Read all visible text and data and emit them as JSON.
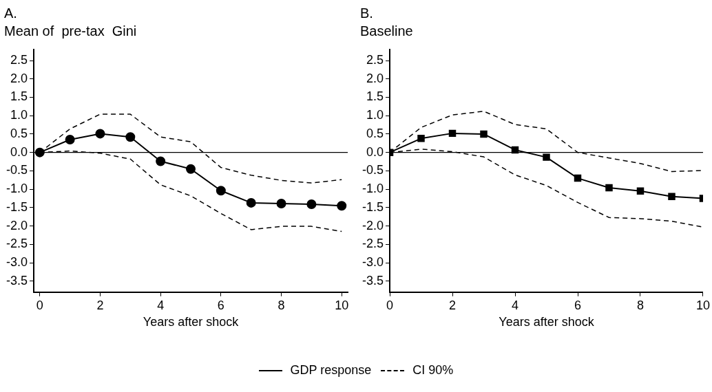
{
  "chart_data": [
    {
      "type": "line",
      "title": "A.",
      "subtitle": "Mean of  pre-tax  Gini",
      "xlabel": "Years after shock",
      "x": [
        0,
        1,
        2,
        3,
        4,
        5,
        6,
        7,
        8,
        9,
        10
      ],
      "xlim": [
        -0.2,
        10.2
      ],
      "xticks": [
        0,
        2,
        4,
        6,
        8,
        10
      ],
      "ylim": [
        -3.8,
        2.8
      ],
      "yticks": [
        {
          "value": -3.5,
          "label": "-3.5"
        },
        {
          "value": -3,
          "label": "-3.0"
        },
        {
          "value": -2.5,
          "label": "-2.5"
        },
        {
          "value": -2,
          "label": "-2.0"
        },
        {
          "value": -1.5,
          "label": "-1.5"
        },
        {
          "value": -1,
          "label": "-1.0"
        },
        {
          "value": -0.5,
          "label": "-0.5"
        },
        {
          "value": 0,
          "label": "0.0"
        },
        {
          "value": 0.5,
          "label": "0.5"
        },
        {
          "value": 1,
          "label": "1.0"
        },
        {
          "value": 1.5,
          "label": "1.5"
        },
        {
          "value": 2,
          "label": "2.0"
        },
        {
          "value": 2.5,
          "label": "2.5"
        }
      ],
      "grid": false,
      "legend": "bottom",
      "ref_lines": [
        {
          "axis": "y",
          "value": 0,
          "color": "#000000",
          "line_style": "solid"
        }
      ],
      "series": [
        {
          "name": "GDP response",
          "color": "#000000",
          "marker": "circle",
          "line_style": "solid",
          "values": [
            0,
            0.35,
            0.51,
            0.42,
            -0.24,
            -0.45,
            -1.04,
            -1.37,
            -1.39,
            -1.41,
            -1.45
          ]
        },
        {
          "name": "CI 90%",
          "color": "#000000",
          "marker": "none",
          "line_style": "dashed",
          "values": [
            0,
            0.64,
            1.04,
            1.04,
            0.42,
            0.29,
            -0.41,
            -0.62,
            -0.76,
            -0.83,
            -0.74
          ]
        },
        {
          "color": "#000000",
          "marker": "none",
          "line_style": "dashed",
          "values": [
            0,
            0.04,
            -0.02,
            -0.18,
            -0.88,
            -1.18,
            -1.66,
            -2.1,
            -2.01,
            -2.01,
            -2.15
          ]
        }
      ]
    },
    {
      "type": "line",
      "title": "B.",
      "subtitle": "Baseline",
      "xlabel": "Years after shock",
      "x": [
        0,
        1,
        2,
        3,
        4,
        5,
        6,
        7,
        8,
        9,
        10
      ],
      "xlim": [
        0,
        10
      ],
      "xticks": [
        0,
        2,
        4,
        6,
        8,
        10
      ],
      "ylim": [
        -3.8,
        2.8
      ],
      "yticks": [
        {
          "value": -3.5,
          "label": "-3.5"
        },
        {
          "value": -3,
          "label": "-3.0"
        },
        {
          "value": -2.5,
          "label": "-2.5"
        },
        {
          "value": -2,
          "label": "-2.0"
        },
        {
          "value": -1.5,
          "label": "-1.5"
        },
        {
          "value": -1,
          "label": "-1.0"
        },
        {
          "value": -0.5,
          "label": "-0.5"
        },
        {
          "value": 0,
          "label": "0.0"
        },
        {
          "value": 0.5,
          "label": "0.5"
        },
        {
          "value": 1,
          "label": "1.0"
        },
        {
          "value": 1.5,
          "label": "1.5"
        },
        {
          "value": 2,
          "label": "2.0"
        },
        {
          "value": 2.5,
          "label": "2.5"
        }
      ],
      "grid": false,
      "legend": "bottom",
      "ref_lines": [
        {
          "axis": "y",
          "value": 0,
          "color": "#000000",
          "line_style": "solid"
        }
      ],
      "series": [
        {
          "name": "GDP response",
          "color": "#000000",
          "marker": "square",
          "line_style": "solid",
          "values": [
            0,
            0.38,
            0.52,
            0.5,
            0.07,
            -0.13,
            -0.7,
            -0.96,
            -1.05,
            -1.2,
            -1.25
          ]
        },
        {
          "name": "CI 90%",
          "color": "#000000",
          "marker": "none",
          "line_style": "dashed",
          "values": [
            0,
            0.68,
            1.02,
            1.12,
            0.76,
            0.64,
            0,
            -0.15,
            -0.3,
            -0.52,
            -0.49
          ]
        },
        {
          "color": "#000000",
          "marker": "none",
          "line_style": "dashed",
          "values": [
            0,
            0.09,
            0.02,
            -0.12,
            -0.61,
            -0.9,
            -1.36,
            -1.77,
            -1.8,
            -1.87,
            -2.03
          ]
        }
      ]
    }
  ]
}
